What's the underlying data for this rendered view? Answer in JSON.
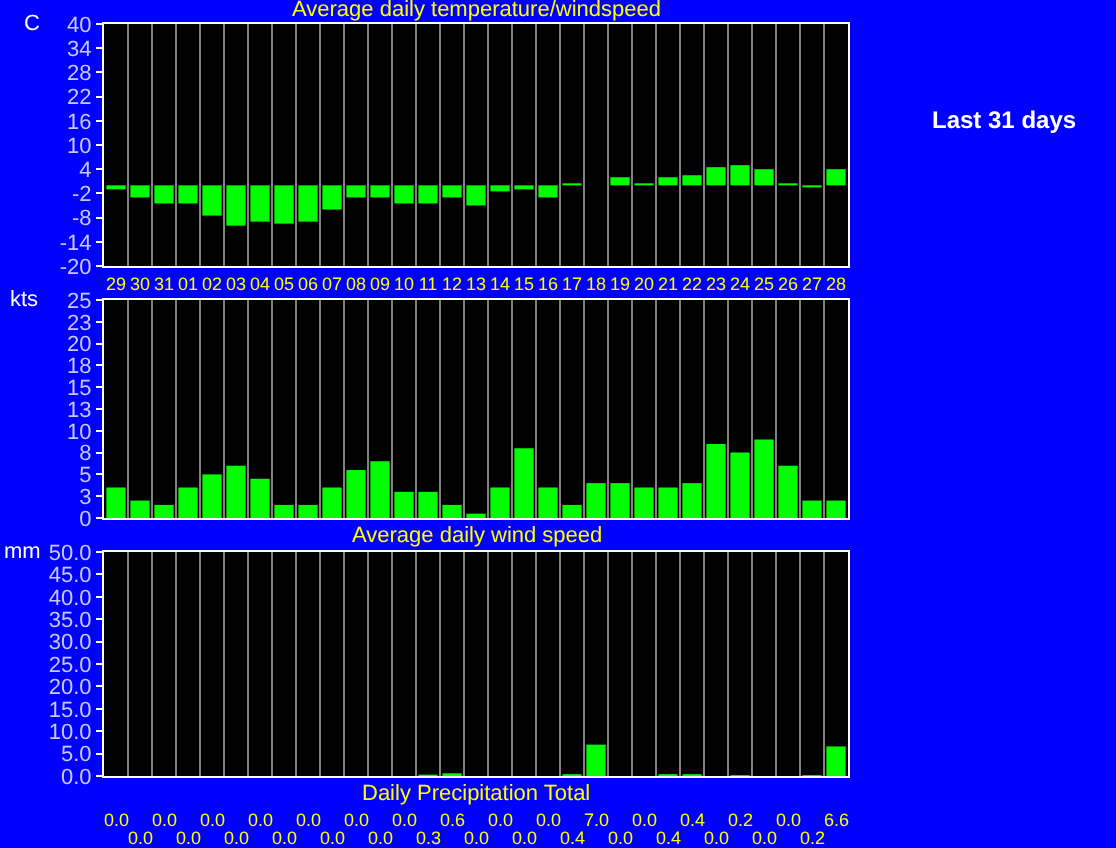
{
  "chart_data": [
    {
      "type": "bar",
      "title": "Average daily temperature/windspeed",
      "ylabel": "C",
      "categories": [
        "29",
        "30",
        "31",
        "01",
        "02",
        "03",
        "04",
        "05",
        "06",
        "07",
        "08",
        "09",
        "10",
        "11",
        "12",
        "13",
        "14",
        "15",
        "16",
        "17",
        "18",
        "19",
        "20",
        "21",
        "22",
        "23",
        "24",
        "25",
        "26",
        "27",
        "28"
      ],
      "values": [
        -1,
        -3,
        -4.5,
        -4.5,
        -7.5,
        -10,
        -9,
        -9.5,
        -9,
        -6,
        -3,
        -3,
        -4.5,
        -4.5,
        -3,
        -5,
        -1.5,
        -1,
        -3,
        0.5,
        0,
        2,
        0.5,
        2,
        2.5,
        4.5,
        5,
        4,
        0.5,
        -0.5,
        4
      ],
      "color": "#00ff00",
      "ylim": [
        -20,
        40
      ],
      "yticks": [
        -20,
        -14,
        -8,
        -2,
        4,
        10,
        16,
        22,
        28,
        34,
        40
      ],
      "grid": "x",
      "annotations": [
        "Last 31 days"
      ]
    },
    {
      "type": "bar",
      "ylabel": "kts",
      "xlabel": "Average daily wind speed",
      "categories": [
        "29",
        "30",
        "31",
        "01",
        "02",
        "03",
        "04",
        "05",
        "06",
        "07",
        "08",
        "09",
        "10",
        "11",
        "12",
        "13",
        "14",
        "15",
        "16",
        "17",
        "18",
        "19",
        "20",
        "21",
        "22",
        "23",
        "24",
        "25",
        "26",
        "27",
        "28"
      ],
      "values": [
        3.5,
        2,
        1.5,
        3.5,
        5,
        6,
        4.5,
        1.5,
        1.5,
        3.5,
        5.5,
        6.5,
        3,
        3,
        1.5,
        0.5,
        3.5,
        8,
        3.5,
        1.5,
        4,
        4,
        3.5,
        3.5,
        4,
        8.5,
        7.5,
        9,
        6,
        2,
        2
      ],
      "color": "#00ff00",
      "ylim": [
        0,
        25
      ],
      "yticks": [
        0,
        {
          "value": 2.5,
          "label": "3"
        },
        5,
        {
          "value": 7.5,
          "label": "8"
        },
        10,
        {
          "value": 12.5,
          "label": "13"
        },
        15,
        {
          "value": 17.5,
          "label": "18"
        },
        20,
        {
          "value": 22.5,
          "label": "23"
        },
        25
      ],
      "grid": "x",
      "tick_labels": "y"
    },
    {
      "type": "bar",
      "ylabel": "mm",
      "xlabel": "Daily Precipitation Total",
      "categories": [
        "29",
        "30",
        "31",
        "01",
        "02",
        "03",
        "04",
        "05",
        "06",
        "07",
        "08",
        "09",
        "10",
        "11",
        "12",
        "13",
        "14",
        "15",
        "16",
        "17",
        "18",
        "19",
        "20",
        "21",
        "22",
        "23",
        "24",
        "25",
        "26",
        "27",
        "28"
      ],
      "values": [
        0,
        0,
        0,
        0,
        0,
        0,
        0,
        0,
        0,
        0,
        0,
        0,
        0,
        0.3,
        0.6,
        0,
        0,
        0,
        0,
        0.4,
        7,
        0,
        0,
        0.4,
        0.4,
        0,
        0.2,
        0,
        0,
        0.2,
        6.6
      ],
      "value_labels": [
        "0.0",
        "0.0",
        "0.0",
        "0.0",
        "0.0",
        "0.0",
        "0.0",
        "0.0",
        "0.0",
        "0.0",
        "0.0",
        "0.0",
        "0.0",
        "0.3",
        "0.6",
        "0.0",
        "0.0",
        "0.0",
        "0.0",
        "0.4",
        "7.0",
        "0.0",
        "0.0",
        "0.4",
        "0.4",
        "0.0",
        "0.2",
        "0.0",
        "0.0",
        "0.2",
        "6.6"
      ],
      "color": "#00ff00",
      "ylim": [
        0,
        50
      ],
      "yticks": [
        {
          "value": 0,
          "label": "0.0"
        },
        {
          "value": 5,
          "label": "5.0"
        },
        {
          "value": 10,
          "label": "10.0"
        },
        {
          "value": 15,
          "label": "15.0"
        },
        {
          "value": 20,
          "label": "20.0"
        },
        {
          "value": 25,
          "label": "25.0"
        },
        {
          "value": 30,
          "label": "30.0"
        },
        {
          "value": 35,
          "label": "35.0"
        },
        {
          "value": 40,
          "label": "40.0"
        },
        {
          "value": 45,
          "label": "45.0"
        },
        {
          "value": 50,
          "label": "50.0"
        }
      ],
      "grid": "x",
      "tick_labels": "y"
    }
  ]
}
